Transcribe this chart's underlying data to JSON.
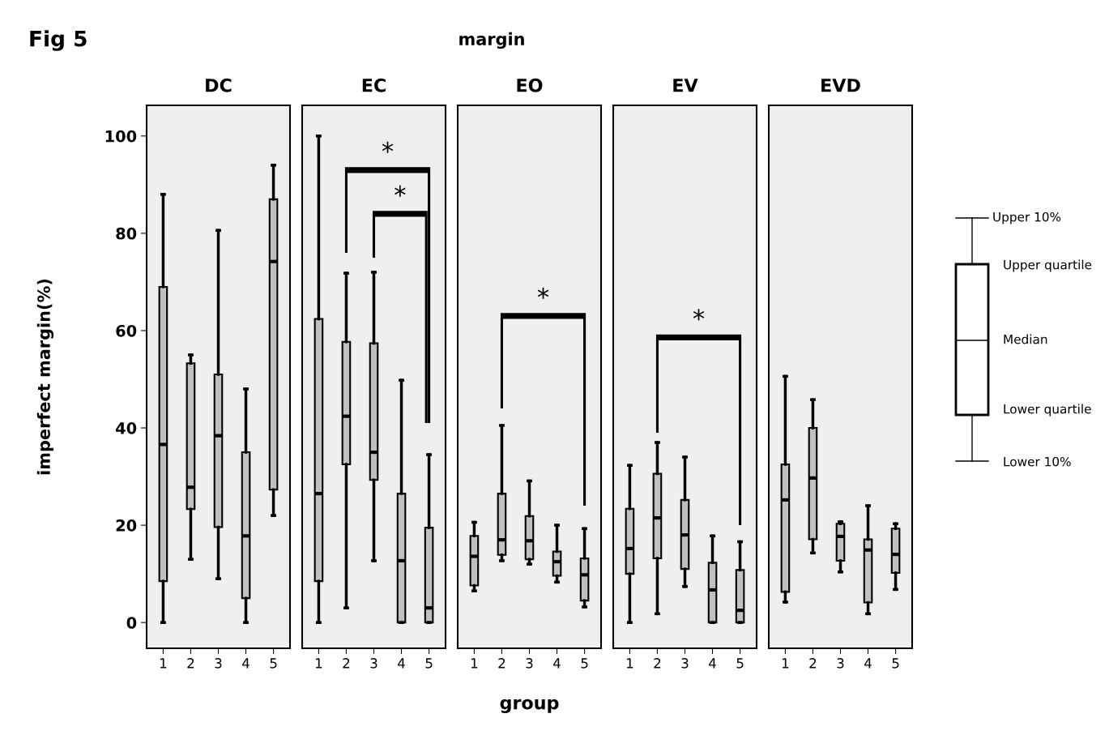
{
  "chart_data": [
    {
      "type": "box",
      "title": "DC",
      "ylabel": "imperfect margin(%)",
      "annotations": [
        "Fig 5",
        "margin"
      ],
      "categories": [
        "1",
        "2",
        "3",
        "4",
        "5"
      ],
      "color": "#c0c0c0",
      "ylim": [
        -5.3,
        106.3
      ],
      "yticks": [
        0,
        20,
        40,
        60,
        80,
        100
      ],
      "grid": false,
      "boxes": [
        {
          "low": 0,
          "q1": 8.5,
          "median": 36.6,
          "q3": 69,
          "high": 88
        },
        {
          "low": 13,
          "q1": 23.3,
          "median": 27.8,
          "q3": 53.3,
          "high": 55
        },
        {
          "low": 9,
          "q1": 19.6,
          "median": 38.4,
          "q3": 51,
          "high": 80.6
        },
        {
          "low": 0,
          "q1": 5,
          "median": 17.8,
          "q3": 35,
          "high": 48
        },
        {
          "low": 22,
          "q1": 27.3,
          "median": 74.2,
          "q3": 87,
          "high": 94
        }
      ]
    },
    {
      "type": "box",
      "title": "EC",
      "annotations": [
        "*",
        "*"
      ],
      "categories": [
        "1",
        "2",
        "3",
        "4",
        "5"
      ],
      "color": "#c0c0c0",
      "ylim": [
        -5.3,
        106.3
      ],
      "yticks": [
        0,
        20,
        40,
        60,
        80,
        100
      ],
      "tick_labels": "x",
      "grid": false,
      "boxes": [
        {
          "low": 0,
          "q1": 8.5,
          "median": 26.5,
          "q3": 62.4,
          "high": 100
        },
        {
          "low": 3,
          "q1": 32.5,
          "median": 42.4,
          "q3": 57.7,
          "high": 71.8
        },
        {
          "low": 12.7,
          "q1": 29.3,
          "median": 35,
          "q3": 57.4,
          "high": 72
        },
        {
          "low": 0,
          "q1": 0,
          "median": 12.7,
          "q3": 26.5,
          "high": 49.8
        },
        {
          "low": 0,
          "q1": 0,
          "median": 3,
          "q3": 19.5,
          "high": 34.5
        }
      ]
    },
    {
      "type": "box",
      "title": "EO",
      "xlabel": "group",
      "annotations": [
        "*"
      ],
      "categories": [
        "1",
        "2",
        "3",
        "4",
        "5"
      ],
      "color": "#c0c0c0",
      "ylim": [
        -5.3,
        106.3
      ],
      "yticks": [
        0,
        20,
        40,
        60,
        80,
        100
      ],
      "tick_labels": "x",
      "grid": false,
      "boxes": [
        {
          "low": 6.5,
          "q1": 7.6,
          "median": 13.6,
          "q3": 17.8,
          "high": 20.6
        },
        {
          "low": 12.7,
          "q1": 13.9,
          "median": 17,
          "q3": 26.5,
          "high": 40.5
        },
        {
          "low": 12,
          "q1": 13,
          "median": 16.8,
          "q3": 21.9,
          "high": 29.1
        },
        {
          "low": 8.3,
          "q1": 9.6,
          "median": 12.5,
          "q3": 14.6,
          "high": 20
        },
        {
          "low": 3.2,
          "q1": 4.5,
          "median": 9.8,
          "q3": 13.2,
          "high": 19.3
        }
      ]
    },
    {
      "type": "box",
      "title": "EV",
      "annotations": [
        "*"
      ],
      "categories": [
        "1",
        "2",
        "3",
        "4",
        "5"
      ],
      "color": "#c0c0c0",
      "ylim": [
        -5.3,
        106.3
      ],
      "yticks": [
        0,
        20,
        40,
        60,
        80,
        100
      ],
      "tick_labels": "x",
      "grid": false,
      "boxes": [
        {
          "low": 0,
          "q1": 10,
          "median": 15.2,
          "q3": 23.4,
          "high": 32.3
        },
        {
          "low": 1.8,
          "q1": 13.2,
          "median": 21.5,
          "q3": 30.6,
          "high": 37
        },
        {
          "low": 7.4,
          "q1": 11,
          "median": 18,
          "q3": 25.2,
          "high": 34
        },
        {
          "low": 0,
          "q1": 0,
          "median": 6.7,
          "q3": 12.3,
          "high": 17.8
        },
        {
          "low": 0,
          "q1": 0,
          "median": 2.5,
          "q3": 10.8,
          "high": 16.6
        }
      ]
    },
    {
      "type": "box",
      "title": "EVD",
      "categories": [
        "1",
        "2",
        "3",
        "4",
        "5"
      ],
      "color": "#c0c0c0",
      "ylim": [
        -5.3,
        106.3
      ],
      "yticks": [
        0,
        20,
        40,
        60,
        80,
        100
      ],
      "tick_labels": "x",
      "grid": false,
      "boxes": [
        {
          "low": 4.2,
          "q1": 6.3,
          "median": 25.2,
          "q3": 32.5,
          "high": 50.6
        },
        {
          "low": 14.3,
          "q1": 17.1,
          "median": 29.7,
          "q3": 40,
          "high": 45.8
        },
        {
          "low": 10.4,
          "q1": 12.7,
          "median": 17.7,
          "q3": 20.3,
          "high": 20.7
        },
        {
          "low": 1.8,
          "q1": 4.1,
          "median": 14.9,
          "q3": 17.1,
          "high": 24
        },
        {
          "low": 6.8,
          "q1": 10.2,
          "median": 14,
          "q3": 19.3,
          "high": 20.3
        }
      ]
    },
    {
      "type": "other",
      "annotations": [
        "Upper 10%",
        "Upper quartile",
        "Median",
        "Lower quartile",
        "Lower 10%"
      ]
    }
  ]
}
